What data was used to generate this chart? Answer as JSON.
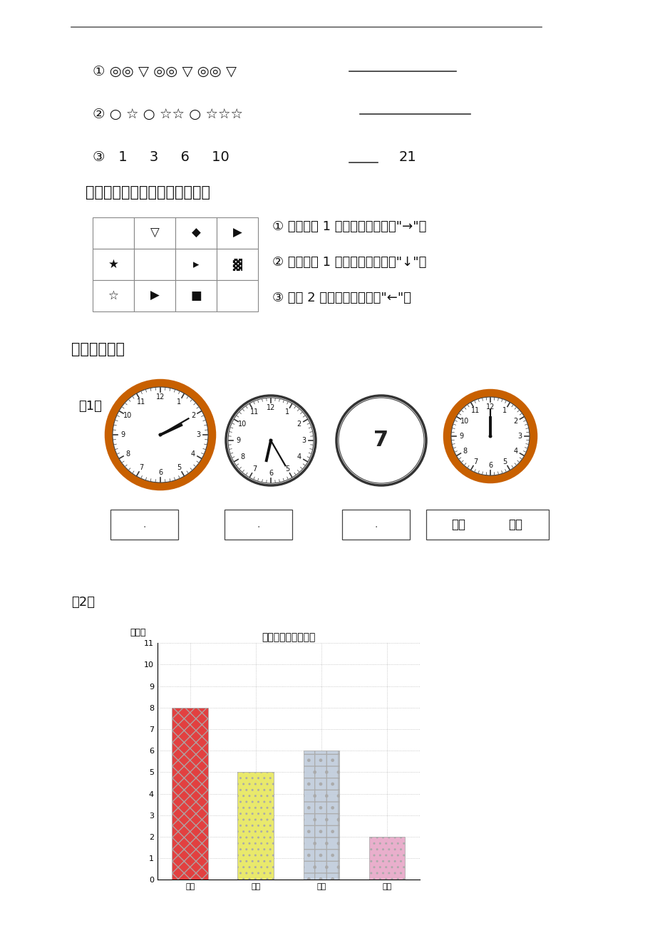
{
  "bg_color": "#ffffff",
  "bar_categories": [
    "草莓",
    "苹果",
    "香蕉",
    "橘子"
  ],
  "bar_values": [
    8,
    5,
    6,
    2
  ],
  "bar_colors": [
    "#e03030",
    "#e8e860",
    "#c0ccdc",
    "#e8a8c8"
  ],
  "bar_chart_title": "同学们喜欢吃的水果",
  "bar_ylabel": "（人）",
  "bar_yticks": [
    0,
    1,
    2,
    3,
    4,
    5,
    6,
    7,
    8,
    9,
    10,
    11
  ]
}
